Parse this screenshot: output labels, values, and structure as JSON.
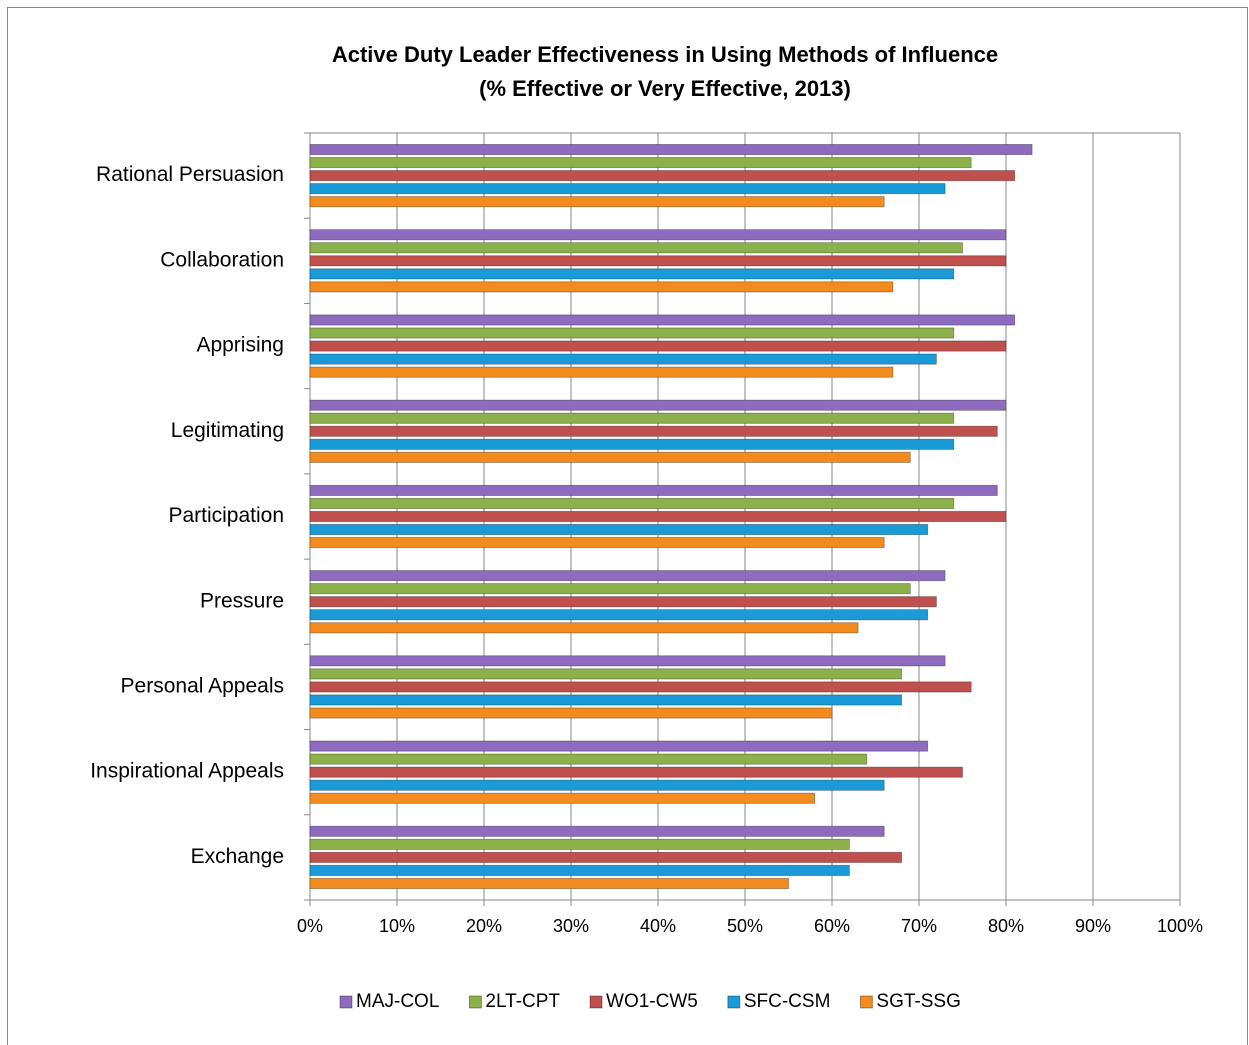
{
  "chart_data": {
    "type": "barh",
    "title": [
      "Active Duty Leader Effectiveness in Using Methods of Influence",
      "(% Effective or Very Effective, 2013)"
    ],
    "categories": [
      "Rational Persuasion",
      "Collaboration",
      "Apprising",
      "Legitimating",
      "Participation",
      "Pressure",
      "Personal Appeals",
      "Inspirational Appeals",
      "Exchange"
    ],
    "series": [
      {
        "name": "MAJ-COL",
        "color": "#8e6bbf",
        "values": [
          83,
          80,
          81,
          80,
          79,
          73,
          73,
          71,
          66
        ]
      },
      {
        "name": "2LT-CPT",
        "color": "#8cb04a",
        "values": [
          76,
          75,
          74,
          74,
          74,
          69,
          68,
          64,
          62
        ]
      },
      {
        "name": "WO1-CW5",
        "color": "#c0504d",
        "values": [
          81,
          80,
          80,
          79,
          80,
          72,
          76,
          75,
          68
        ]
      },
      {
        "name": "SFC-CSM",
        "color": "#1a9ad6",
        "values": [
          73,
          74,
          72,
          74,
          71,
          71,
          68,
          66,
          62
        ]
      },
      {
        "name": "SGT-SSG",
        "color": "#f38b1f",
        "values": [
          66,
          67,
          67,
          69,
          66,
          63,
          60,
          58,
          55
        ]
      }
    ],
    "xlim": [
      0,
      100
    ],
    "xticks": [
      {
        "value": 0,
        "label": "0%"
      },
      {
        "value": 10,
        "label": "10%"
      },
      {
        "value": 20,
        "label": "20%"
      },
      {
        "value": 30,
        "label": "30%"
      },
      {
        "value": 40,
        "label": "40%"
      },
      {
        "value": 50,
        "label": "50%"
      },
      {
        "value": 60,
        "label": "60%"
      },
      {
        "value": 70,
        "label": "70%"
      },
      {
        "value": 80,
        "label": "80%"
      },
      {
        "value": 90,
        "label": "90%"
      },
      {
        "value": 100,
        "label": "100%"
      }
    ],
    "grid": true,
    "legend": "bottom"
  }
}
